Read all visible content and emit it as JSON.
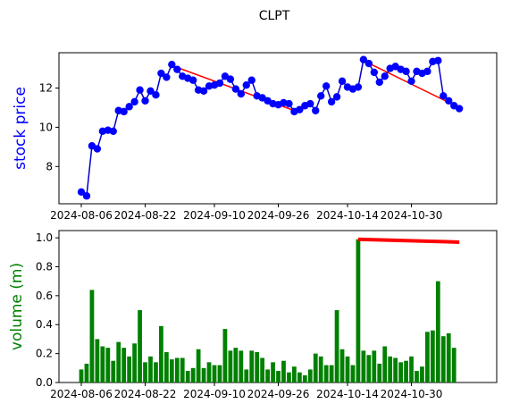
{
  "chart_data": [
    {
      "type": "line",
      "title": "CLPT",
      "ylabel": "stock price",
      "ylabel_color": "#0000ff",
      "line_color": "#0000cc",
      "marker_color": "#0000ff",
      "trend_color": "#ff0000",
      "ylim": [
        6.1,
        13.8
      ],
      "yticks": [
        8,
        10,
        12
      ],
      "xtick_labels": [
        "2024-08-06",
        "2024-08-22",
        "2024-09-10",
        "2024-09-26",
        "2024-10-14",
        "2024-10-30"
      ],
      "xtick_index": [
        0,
        12,
        25,
        37,
        50,
        62
      ],
      "x_count": 76,
      "values": [
        6.7,
        6.5,
        9.05,
        8.9,
        9.8,
        9.85,
        9.8,
        10.85,
        10.8,
        11.05,
        11.3,
        11.9,
        11.35,
        11.85,
        11.65,
        12.75,
        12.55,
        13.2,
        12.95,
        12.6,
        12.5,
        12.4,
        11.9,
        11.85,
        12.1,
        12.15,
        12.25,
        12.6,
        12.45,
        11.95,
        11.7,
        12.15,
        12.4,
        11.6,
        11.5,
        11.35,
        11.2,
        11.15,
        11.25,
        11.2,
        10.8,
        10.9,
        11.1,
        11.2,
        10.85,
        11.6,
        12.1,
        11.3,
        11.55,
        12.35,
        12.05,
        11.95,
        12.05,
        13.45,
        13.25,
        12.8,
        12.3,
        12.6,
        13.0,
        13.1,
        12.95,
        12.85,
        12.35,
        12.85,
        12.75,
        12.85,
        13.35,
        13.4,
        11.6,
        11.35,
        11.1,
        10.95
      ],
      "trend_lines": [
        {
          "x": [
            11,
            12
          ],
          "y": [
            11.9,
            11.35
          ]
        },
        {
          "x": [
            17,
            40
          ],
          "y": [
            13.15,
            10.85
          ]
        },
        {
          "x": [
            53,
            71
          ],
          "y": [
            13.4,
            11.0
          ]
        }
      ]
    },
    {
      "type": "bar",
      "ylabel": "volume (m)",
      "ylabel_color": "#008000",
      "bar_color": "#008000",
      "trend_color": "#ff0000",
      "ylim": [
        0,
        1.05
      ],
      "yticks": [
        0.0,
        0.2,
        0.4,
        0.6,
        0.8,
        1.0
      ],
      "ytick_labels": [
        "0.0",
        "0.2",
        "0.4",
        "0.6",
        "0.8",
        "1.0"
      ],
      "xtick_labels": [
        "2024-08-06",
        "2024-08-22",
        "2024-09-10",
        "2024-09-26",
        "2024-10-14",
        "2024-10-30"
      ],
      "xtick_index": [
        0,
        12,
        25,
        37,
        50,
        62
      ],
      "x_count": 76,
      "values": [
        0.09,
        0.13,
        0.64,
        0.3,
        0.25,
        0.24,
        0.15,
        0.28,
        0.24,
        0.18,
        0.27,
        0.5,
        0.14,
        0.18,
        0.14,
        0.39,
        0.21,
        0.16,
        0.17,
        0.17,
        0.08,
        0.1,
        0.23,
        0.1,
        0.14,
        0.12,
        0.12,
        0.37,
        0.22,
        0.24,
        0.22,
        0.09,
        0.22,
        0.21,
        0.17,
        0.09,
        0.14,
        0.08,
        0.15,
        0.07,
        0.11,
        0.07,
        0.05,
        0.09,
        0.2,
        0.18,
        0.12,
        0.12,
        0.5,
        0.23,
        0.18,
        0.12,
        0.99,
        0.22,
        0.19,
        0.22,
        0.13,
        0.25,
        0.18,
        0.17,
        0.14,
        0.15,
        0.18,
        0.08,
        0.11,
        0.35,
        0.36,
        0.7,
        0.32,
        0.34,
        0.24
      ],
      "trend_lines": [
        {
          "x": [
            52,
            71
          ],
          "y": [
            0.99,
            0.97
          ]
        }
      ]
    }
  ]
}
